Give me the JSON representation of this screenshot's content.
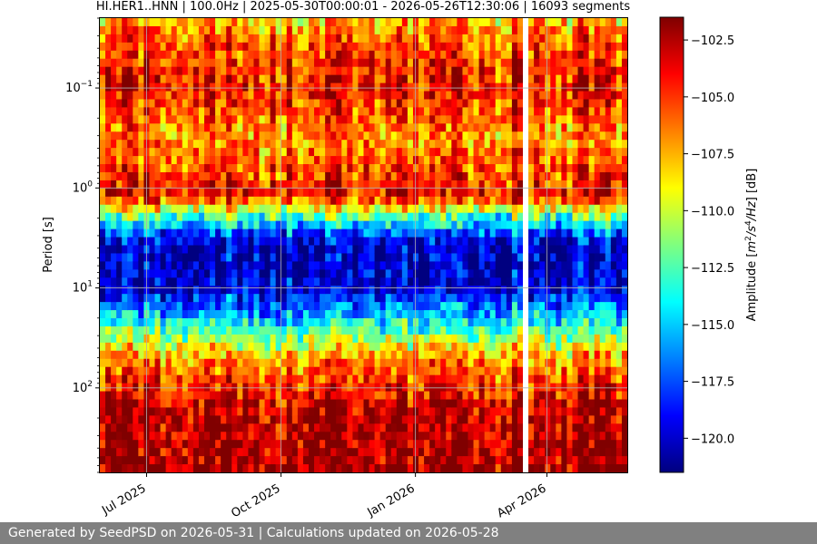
{
  "footer": {
    "text": "Generated by SeedPSD on 2026-05-31 | Calculations updated on 2026-05-28"
  },
  "chart_data": {
    "type": "heatmap",
    "title": "HI.HER1..HNN | 100.0Hz | 2025-05-30T00:00:01 - 2026-05-26T12:30:06 | 16093 segments",
    "xlabel": "",
    "ylabel": "Period [s]",
    "colorbar_label_prefix": "Amplitude [",
    "colorbar_label_units": [
      "m",
      "2",
      "/s",
      "4",
      "/Hz"
    ],
    "colorbar_label_suffix": "] [dB]",
    "colormap": "jet",
    "x_range": [
      "2025-05-30",
      "2026-05-26"
    ],
    "x_ticks": [
      {
        "date": "2025-07-01",
        "label": "Jul 2025"
      },
      {
        "date": "2025-10-01",
        "label": "Oct 2025"
      },
      {
        "date": "2026-01-01",
        "label": "Jan 2026"
      },
      {
        "date": "2026-04-01",
        "label": "Apr 2026"
      }
    ],
    "y_scale": "log",
    "y_inverted": true,
    "y_range": [
      0.02,
      700
    ],
    "y_ticks": [
      {
        "value": 0.1,
        "base": "10",
        "exp": "−1"
      },
      {
        "value": 1,
        "base": "10",
        "exp": "0"
      },
      {
        "value": 10,
        "base": "10",
        "exp": "1"
      },
      {
        "value": 100,
        "base": "10",
        "exp": "2"
      }
    ],
    "grid": true,
    "colorbar_range": [
      -121.5,
      -101.5
    ],
    "colorbar_ticks": [
      -102.5,
      -105.0,
      -107.5,
      -110.0,
      -112.5,
      -115.0,
      -117.5,
      -120.0
    ],
    "colorbar_tick_labels": [
      "−102.5",
      "−105.0",
      "−107.5",
      "−110.0",
      "−112.5",
      "−115.0",
      "−117.5",
      "−120.0"
    ],
    "profile": [
      {
        "period": 0.02,
        "db": -108
      },
      {
        "period": 0.03,
        "db": -106
      },
      {
        "period": 0.1,
        "db": -104
      },
      {
        "period": 0.3,
        "db": -107
      },
      {
        "period": 1.2,
        "db": -104
      },
      {
        "period": 2,
        "db": -113
      },
      {
        "period": 3.5,
        "db": -120
      },
      {
        "period": 10,
        "db": -120
      },
      {
        "period": 25,
        "db": -113
      },
      {
        "period": 50,
        "db": -107
      },
      {
        "period": 150,
        "db": -103
      },
      {
        "period": 700,
        "db": -102
      }
    ],
    "data_gaps": [
      "2026-03-19"
    ]
  }
}
